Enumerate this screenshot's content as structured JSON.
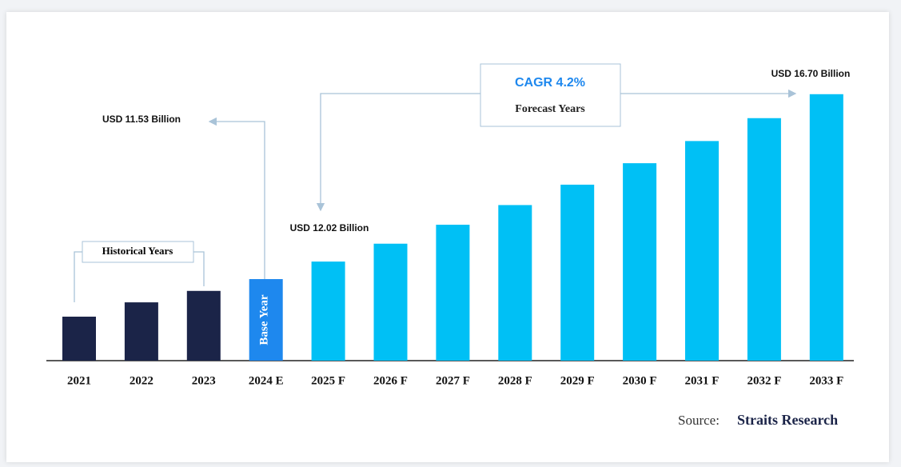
{
  "chart_data": {
    "type": "bar",
    "categories": [
      "2021",
      "2022",
      "2023",
      "2024 E",
      "2025 F",
      "2026 F",
      "2027 F",
      "2028 F",
      "2029 F",
      "2030 F",
      "2031 F",
      "2032 F",
      "2033 F"
    ],
    "values": [
      10.48,
      10.88,
      11.2,
      11.53,
      12.02,
      12.52,
      13.05,
      13.6,
      14.17,
      14.77,
      15.39,
      16.03,
      16.7
    ],
    "value_labels": [
      null,
      null,
      null,
      "USD 11.53 Billion",
      "USD 12.02 Billion",
      null,
      null,
      null,
      null,
      null,
      null,
      null,
      "USD 16.70 Billion"
    ],
    "colors": [
      "#1b2448",
      "#1b2448",
      "#1b2448",
      "#1e88ee",
      "#00c0f5",
      "#00c0f5",
      "#00c0f5",
      "#00c0f5",
      "#00c0f5",
      "#00c0f5",
      "#00c0f5",
      "#00c0f5",
      "#00c0f5"
    ],
    "ylim": [
      9.25,
      17.5
    ],
    "annotations": {
      "historical": "Historical Years",
      "base": "Base Year",
      "cagr": "CAGR 4.2%",
      "forecast": "Forecast Years"
    },
    "source": {
      "label": "Source:",
      "name": "Straits Research"
    }
  }
}
